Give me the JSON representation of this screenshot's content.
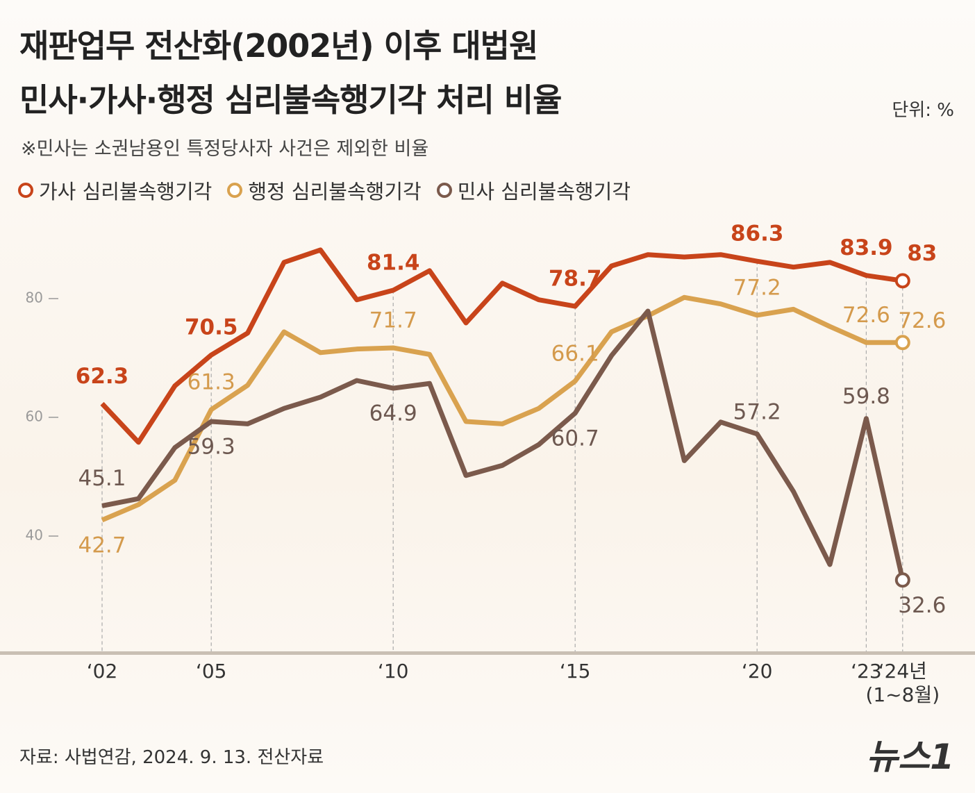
{
  "title_lines": [
    "재판업무 전산화(2002년) 이후 대법원",
    "민사·가사·행정 심리불속행기각 처리 비율"
  ],
  "unit": "단위: %",
  "note": "※민사는 소권남용인 특정당사자 사건은 제외한 비율",
  "source": "자료: 사법연감, 2024. 9. 13. 전산자료",
  "logo": "뉴스1",
  "chart_data": {
    "type": "line",
    "categories": [
      "‘02",
      null,
      null,
      "‘05",
      null,
      null,
      null,
      null,
      "‘10",
      null,
      null,
      null,
      null,
      "‘15",
      null,
      null,
      null,
      null,
      "‘20",
      null,
      null,
      "‘23",
      "‘24년\n(1~8월)"
    ],
    "series": [
      {
        "name": "가사 심리불속행기각",
        "color": "#c8441a",
        "values": [
          62.3,
          55.8,
          65.3,
          70.5,
          74.2,
          86.1,
          88.2,
          79.8,
          81.4,
          84.7,
          75.9,
          82.6,
          79.8,
          78.7,
          85.5,
          87.4,
          87.0,
          87.4,
          86.3,
          85.3,
          86.1,
          83.9,
          83.0
        ]
      },
      {
        "name": "행정 심리불속행기각",
        "color": "#d9a24f",
        "values": [
          42.7,
          45.3,
          49.4,
          61.3,
          65.4,
          74.4,
          70.9,
          71.5,
          71.7,
          70.6,
          59.3,
          58.9,
          61.5,
          66.1,
          74.4,
          77.1,
          80.2,
          79.1,
          77.2,
          78.2,
          75.3,
          72.6,
          72.6
        ]
      },
      {
        "name": "민사 심리불속행기각",
        "color": "#7b5a4c",
        "values": [
          45.1,
          46.3,
          54.9,
          59.3,
          58.9,
          61.5,
          63.4,
          66.2,
          64.9,
          65.7,
          50.2,
          51.9,
          55.4,
          60.7,
          70.4,
          77.9,
          52.7,
          59.2,
          57.2,
          47.5,
          35.2,
          59.8,
          32.6
        ]
      }
    ],
    "ylim": [
      20,
      100
    ],
    "yticks": [
      40,
      60,
      80
    ]
  }
}
